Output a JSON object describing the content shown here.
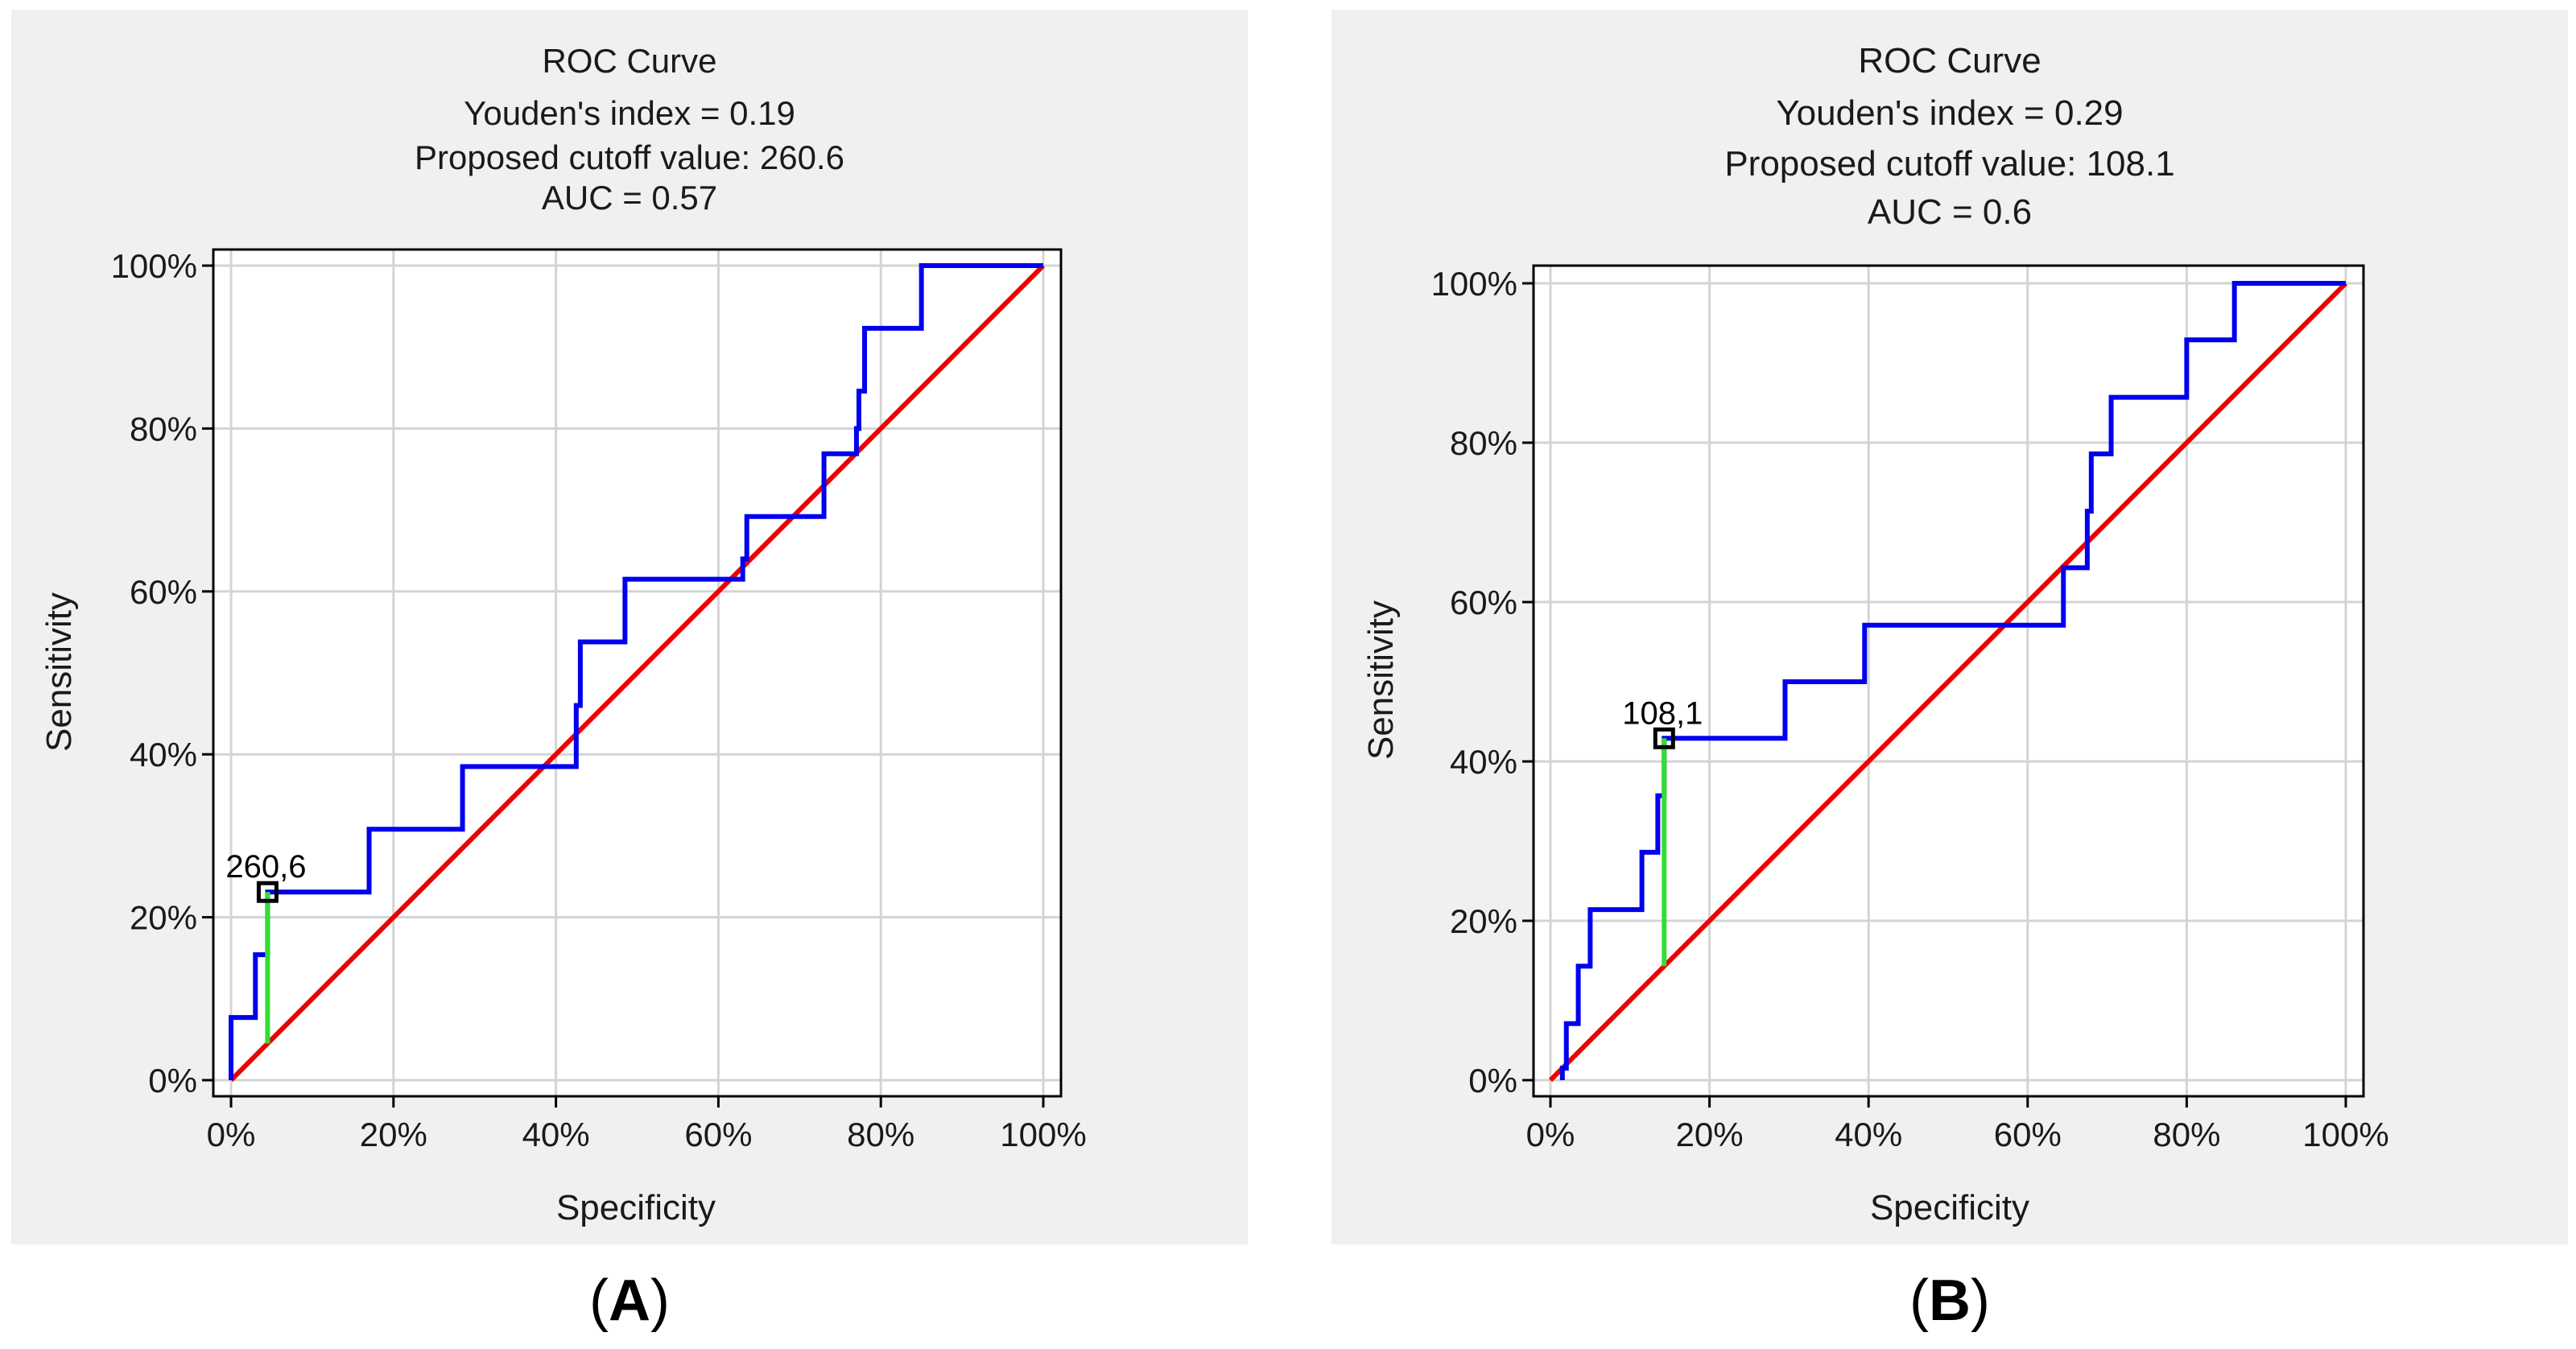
{
  "figure": {
    "panel_labels": [
      "A",
      "B"
    ]
  },
  "chart_data": [
    {
      "type": "line",
      "panel_label": "A",
      "title": "ROC Curve",
      "subtitle_lines": [
        "Youden's index = 0.19",
        "Proposed cutoff value: 260.6",
        "AUC = 0.57"
      ],
      "xlabel": "Specificity",
      "ylabel": "Sensitivity",
      "xlim": [
        0,
        100
      ],
      "ylim": [
        0,
        100
      ],
      "xticks": [
        "0%",
        "20%",
        "40%",
        "60%",
        "80%",
        "100%"
      ],
      "yticks": [
        "0%",
        "20%",
        "40%",
        "60%",
        "80%",
        "100%"
      ],
      "grid": true,
      "colors": {
        "roc": "#0000ee",
        "reference": "#ee0000",
        "youden": "#33dd33",
        "marker": "#000000",
        "panel_bg": "#f0f0f0"
      },
      "series": [
        {
          "name": "ROC",
          "x": [
            0,
            0,
            3,
            3,
            4.5,
            4.5,
            17,
            17,
            28.5,
            28.5,
            42.5,
            42.5,
            43,
            43,
            48.5,
            48.5,
            63,
            63,
            63.5,
            63.5,
            73,
            73,
            77,
            77,
            77.3,
            77.3,
            78,
            78,
            85,
            85,
            100
          ],
          "y": [
            0,
            7.7,
            7.7,
            15.4,
            15.4,
            23.1,
            23.1,
            30.8,
            30.8,
            38.5,
            38.5,
            46,
            46,
            53.8,
            53.8,
            61.5,
            61.5,
            64,
            64,
            69.2,
            69.2,
            76.9,
            76.9,
            80,
            80,
            84.6,
            84.6,
            92.3,
            92.3,
            100,
            100
          ]
        },
        {
          "name": "Reference",
          "x": [
            0,
            100
          ],
          "y": [
            0,
            100
          ]
        }
      ],
      "cutoff": {
        "label": "260,6",
        "x": 4.5,
        "y_roc": 23.1,
        "y_ref": 4.5
      }
    },
    {
      "type": "line",
      "panel_label": "B",
      "title": "ROC Curve",
      "subtitle_lines": [
        "Youden's index = 0.29",
        "Proposed cutoff value: 108.1",
        "AUC = 0.6"
      ],
      "xlabel": "Specificity",
      "ylabel": "Sensitivity",
      "xlim": [
        0,
        100
      ],
      "ylim": [
        0,
        100
      ],
      "xticks": [
        "0%",
        "20%",
        "40%",
        "60%",
        "80%",
        "100%"
      ],
      "yticks": [
        "0%",
        "20%",
        "40%",
        "60%",
        "80%",
        "100%"
      ],
      "grid": true,
      "colors": {
        "roc": "#0000ee",
        "reference": "#ee0000",
        "youden": "#33dd33",
        "marker": "#000000",
        "panel_bg": "#f0f0f0"
      },
      "series": [
        {
          "name": "ROC",
          "x": [
            1.5,
            1.5,
            2,
            2,
            3.5,
            3.5,
            5,
            5,
            11.5,
            11.5,
            13.5,
            13.5,
            14.3,
            14.3,
            29.5,
            29.5,
            39.5,
            39.5,
            64.5,
            64.5,
            67.5,
            67.5,
            68,
            68,
            70.5,
            70.5,
            80,
            80,
            86,
            86,
            100
          ],
          "y": [
            0,
            1.5,
            1.5,
            7.1,
            7.1,
            14.3,
            14.3,
            21.4,
            21.4,
            28.6,
            28.6,
            35.7,
            35.7,
            42.9,
            42.9,
            50,
            50,
            57.1,
            57.1,
            64.3,
            64.3,
            71.4,
            71.4,
            78.6,
            78.6,
            85.7,
            85.7,
            92.9,
            92.9,
            100,
            100
          ]
        },
        {
          "name": "Reference",
          "x": [
            0,
            100
          ],
          "y": [
            0,
            100
          ]
        }
      ],
      "cutoff": {
        "label": "108,1",
        "x": 14.3,
        "y_roc": 42.9,
        "y_ref": 14.3
      }
    }
  ]
}
